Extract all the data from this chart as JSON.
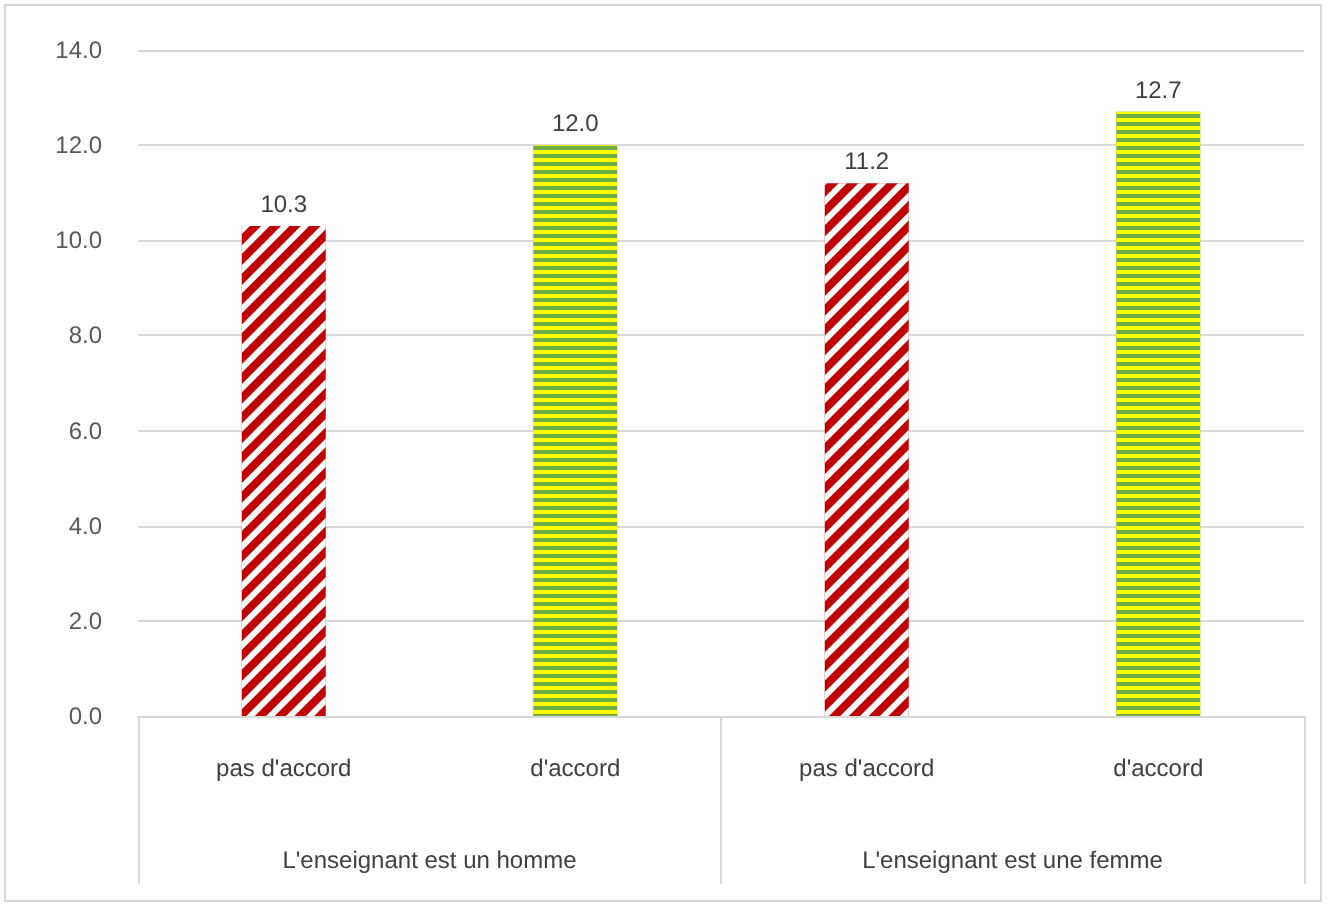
{
  "chart_data": {
    "type": "bar",
    "categories": [
      "pas d'accord",
      "d'accord",
      "pas d'accord",
      "d'accord"
    ],
    "values": [
      10.3,
      12.0,
      11.2,
      12.7
    ],
    "colors": [
      "#c00000",
      "#70ad47",
      "#c00000",
      "#70ad47"
    ],
    "value_labels": [
      "10.3",
      "12.0",
      "11.2",
      "12.7"
    ],
    "annotations": [
      "L'enseignant est un homme",
      "L'enseignant est une femme"
    ],
    "ylim": [
      0,
      14
    ],
    "yticks": [
      {
        "value": 0,
        "label": "0.0"
      },
      {
        "value": 2,
        "label": "2.0"
      },
      {
        "value": 4,
        "label": "4.0"
      },
      {
        "value": 6,
        "label": "6.0"
      },
      {
        "value": 8,
        "label": "8.0"
      },
      {
        "value": 10,
        "label": "10.0"
      },
      {
        "value": 12,
        "label": "12.0"
      },
      {
        "value": 14,
        "label": "14.0"
      }
    ],
    "grid": "y"
  }
}
